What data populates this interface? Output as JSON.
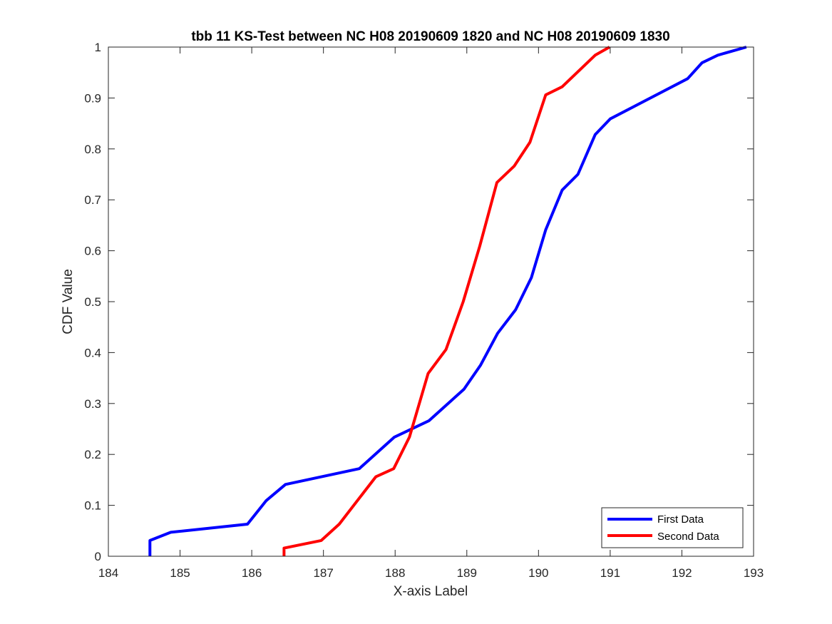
{
  "chart_data": {
    "type": "line",
    "title": "tbb 11 KS-Test between NC H08 20190609 1820 and NC H08 20190609 1830",
    "xlabel": "X-axis Label",
    "ylabel": "CDF Value",
    "xlim": [
      184,
      193
    ],
    "ylim": [
      0,
      1
    ],
    "xticks": [
      "184",
      "185",
      "186",
      "187",
      "188",
      "189",
      "190",
      "191",
      "192",
      "193"
    ],
    "yticks": [
      "0",
      "0.1",
      "0.2",
      "0.3",
      "0.4",
      "0.5",
      "0.6",
      "0.7",
      "0.8",
      "0.9",
      "1"
    ],
    "grid": false,
    "legend_position": "bottom-right",
    "series": [
      {
        "name": "First Data",
        "color": "#0000ff",
        "x": [
          184.58,
          184.58,
          184.87,
          185.94,
          186.2,
          186.47,
          187.5,
          187.99,
          188.47,
          188.96,
          189.19,
          189.43,
          189.68,
          189.9,
          190.1,
          190.33,
          190.55,
          190.79,
          191.0,
          192.08,
          192.28,
          192.5,
          192.9
        ],
        "y": [
          0,
          0.031,
          0.047,
          0.063,
          0.109,
          0.141,
          0.172,
          0.234,
          0.266,
          0.328,
          0.375,
          0.438,
          0.484,
          0.547,
          0.641,
          0.719,
          0.75,
          0.828,
          0.859,
          0.938,
          0.969,
          0.984,
          1.0
        ]
      },
      {
        "name": "Second Data",
        "color": "#ff0000",
        "x": [
          186.45,
          186.45,
          186.97,
          187.22,
          187.73,
          187.98,
          188.2,
          188.46,
          188.71,
          188.95,
          189.18,
          189.42,
          189.66,
          189.88,
          190.1,
          190.33,
          190.79,
          190.99
        ],
        "y": [
          0,
          0.016,
          0.031,
          0.063,
          0.156,
          0.172,
          0.234,
          0.359,
          0.406,
          0.5,
          0.609,
          0.734,
          0.766,
          0.813,
          0.906,
          0.922,
          0.984,
          1.0
        ]
      }
    ]
  }
}
